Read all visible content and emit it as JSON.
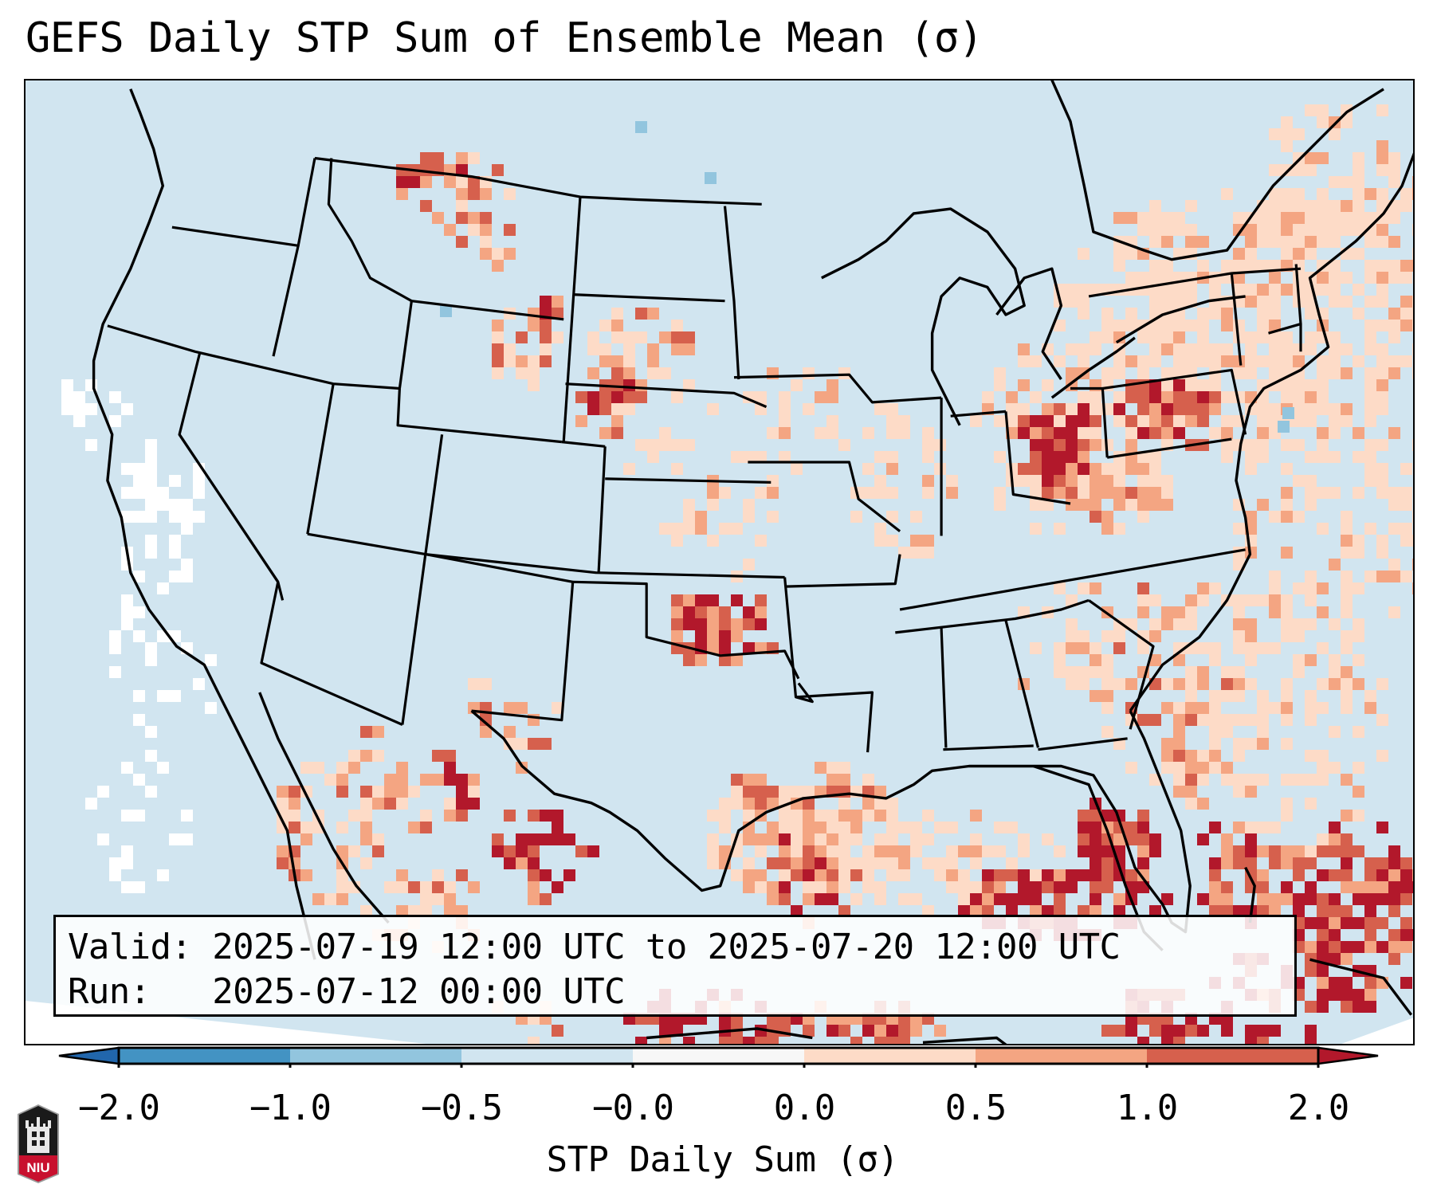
{
  "figure": {
    "title": "GEFS Daily STP Sum of Ensemble Mean (σ)",
    "logo_text": "NIU"
  },
  "legend": {
    "valid_line": "Valid: 2025-07-19 12:00 UTC to 2025-07-20 12:00 UTC",
    "run_line": "Run:   2025-07-12 00:00 UTC"
  },
  "colorbar": {
    "label": "STP Daily Sum (σ)",
    "tick_labels": [
      "−2.0",
      "−1.0",
      "−0.5",
      "−0.0",
      "0.0",
      "0.5",
      "1.0",
      "2.0"
    ],
    "extend": "both",
    "under_color": "#2166ac",
    "over_color": "#b2182b",
    "bins": [
      {
        "from": -2.0,
        "to": -1.0,
        "color": "#4393c3"
      },
      {
        "from": -1.0,
        "to": -0.5,
        "color": "#92c5de"
      },
      {
        "from": -0.5,
        "to": -0.0,
        "color": "#d1e5f0"
      },
      {
        "from": -0.0,
        "to": 0.0,
        "color": "#f7f7f7"
      },
      {
        "from": 0.0,
        "to": 0.5,
        "color": "#fddbc7"
      },
      {
        "from": 0.5,
        "to": 1.0,
        "color": "#f4a582"
      },
      {
        "from": 1.0,
        "to": 2.0,
        "color": "#d6604d"
      }
    ]
  },
  "map": {
    "projection_region": "CONUS",
    "background_color": "#d1e5f0",
    "outside_domain_color": "#ffffff",
    "boundaries": [
      "coastlines",
      "country borders",
      "state borders"
    ],
    "notable_regions": [
      {
        "area": "Ohio / Pennsylvania / West Virginia",
        "level": "1.0 to 2.0 with isolated >2.0"
      },
      {
        "area": "Central Oklahoma",
        "level": "1.0 to >2.0"
      },
      {
        "area": "Montana / Dakotas",
        "level": "0.5 to >2.0 scattered"
      },
      {
        "area": "Florida / Gulf / Bahamas / Cuba",
        "level": ">2.0 widespread"
      },
      {
        "area": "Northeast US / New England",
        "level": "0.0 to 0.5"
      },
      {
        "area": "Offshore California",
        "level": "-0.0 to 0.0"
      }
    ]
  }
}
